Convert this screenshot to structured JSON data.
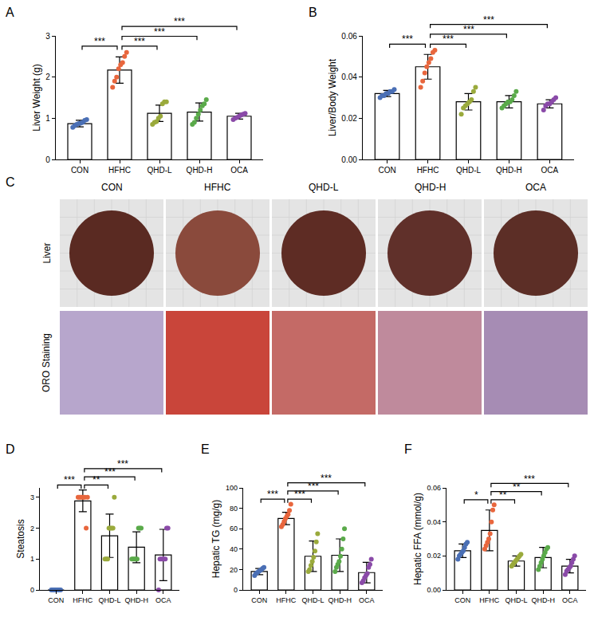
{
  "chart_data": [
    {
      "type": "bar",
      "annotations": [
        "A"
      ],
      "ylabel": "Liver Weight (g)",
      "categories": [
        "CON",
        "HFHC",
        "QHD-L",
        "QHD-H",
        "OCA"
      ],
      "values": [
        0.87,
        2.17,
        1.12,
        1.15,
        1.05
      ],
      "error": [
        0.08,
        0.32,
        0.2,
        0.22,
        0.07
      ],
      "points": [
        [
          0.78,
          0.82,
          0.85,
          0.87,
          0.88,
          0.9,
          0.95,
          0.97
        ],
        [
          1.75,
          1.9,
          2.0,
          2.2,
          2.3,
          2.35,
          2.5,
          2.6
        ],
        [
          0.85,
          0.9,
          0.92,
          1.0,
          1.05,
          1.35,
          1.4,
          1.4
        ],
        [
          0.85,
          0.9,
          1.0,
          1.1,
          1.2,
          1.3,
          1.35,
          1.45
        ],
        [
          0.97,
          1.0,
          1.02,
          1.05,
          1.08,
          1.1,
          1.12
        ]
      ],
      "colors": [
        "#4a6fb5",
        "#e8663d",
        "#9aaa3c",
        "#5aaa4a",
        "#8a4aa8"
      ],
      "ylim": [
        0,
        3
      ],
      "yticks": [
        0,
        1,
        2,
        3
      ],
      "grid": false,
      "comparisons": [
        {
          "groups": [
            "CON",
            "HFHC"
          ],
          "label": "***"
        },
        {
          "groups": [
            "HFHC",
            "QHD-L"
          ],
          "label": "***"
        },
        {
          "groups": [
            "HFHC",
            "QHD-H"
          ],
          "label": "***"
        },
        {
          "groups": [
            "HFHC",
            "OCA"
          ],
          "label": "***"
        }
      ]
    },
    {
      "type": "bar",
      "annotations": [
        "B"
      ],
      "ylabel": "Liver/Body Weight",
      "categories": [
        "CON",
        "HFHC",
        "QHD-L",
        "QHD-H",
        "OCA"
      ],
      "values": [
        0.032,
        0.045,
        0.028,
        0.028,
        0.027
      ],
      "error": [
        0.0015,
        0.006,
        0.004,
        0.003,
        0.002
      ],
      "points": [
        [
          0.03,
          0.031,
          0.031,
          0.032,
          0.032,
          0.033,
          0.033,
          0.034
        ],
        [
          0.035,
          0.038,
          0.042,
          0.045,
          0.047,
          0.049,
          0.052,
          0.053
        ],
        [
          0.022,
          0.025,
          0.026,
          0.027,
          0.028,
          0.029,
          0.033,
          0.035
        ],
        [
          0.025,
          0.026,
          0.027,
          0.028,
          0.028,
          0.029,
          0.031,
          0.033
        ],
        [
          0.024,
          0.026,
          0.027,
          0.027,
          0.028,
          0.029,
          0.03
        ]
      ],
      "colors": [
        "#4a6fb5",
        "#e8663d",
        "#9aaa3c",
        "#5aaa4a",
        "#8a4aa8"
      ],
      "ylim": [
        0,
        0.06
      ],
      "yticks": [
        {
          "value": 0,
          "label": "0.00"
        },
        {
          "value": 0.02,
          "label": "0.02"
        },
        {
          "value": 0.04,
          "label": "0.04"
        },
        {
          "value": 0.06,
          "label": "0.06"
        }
      ],
      "grid": false,
      "comparisons": [
        {
          "groups": [
            "CON",
            "HFHC"
          ],
          "label": "***"
        },
        {
          "groups": [
            "HFHC",
            "QHD-L"
          ],
          "label": "***"
        },
        {
          "groups": [
            "HFHC",
            "QHD-H"
          ],
          "label": "***"
        },
        {
          "groups": [
            "HFHC",
            "OCA"
          ],
          "label": "***"
        }
      ]
    },
    {
      "type": "bar",
      "annotations": [
        "D"
      ],
      "ylabel": "Steatosis",
      "categories": [
        "CON",
        "HFHC",
        "QHD-L",
        "QHD-H",
        "OCA"
      ],
      "values": [
        0,
        2.88,
        1.75,
        1.38,
        1.13
      ],
      "error": [
        0,
        0.35,
        0.7,
        0.5,
        0.83
      ],
      "points": [
        [
          0,
          0,
          0,
          0,
          0,
          0,
          0,
          0
        ],
        [
          3,
          3,
          3,
          3,
          3,
          3,
          2,
          3
        ],
        [
          1,
          1,
          1,
          2,
          2,
          2,
          2,
          3
        ],
        [
          1,
          1,
          1,
          1,
          1,
          2,
          2,
          2
        ],
        [
          0,
          1,
          1,
          1,
          1,
          1,
          2,
          2
        ]
      ],
      "colors": [
        "#4a6fb5",
        "#e8663d",
        "#9aaa3c",
        "#5aaa4a",
        "#8a4aa8"
      ],
      "ylim": [
        0,
        3.3
      ],
      "yticks": [
        0,
        1,
        2,
        3
      ],
      "grid": false,
      "comparisons": [
        {
          "groups": [
            "CON",
            "HFHC"
          ],
          "label": "***"
        },
        {
          "groups": [
            "HFHC",
            "QHD-L"
          ],
          "label": "**"
        },
        {
          "groups": [
            "HFHC",
            "QHD-H"
          ],
          "label": "***"
        },
        {
          "groups": [
            "HFHC",
            "OCA"
          ],
          "label": "***"
        }
      ]
    },
    {
      "type": "bar",
      "annotations": [
        "E"
      ],
      "ylabel": "Hepatic TG (mg/g)",
      "categories": [
        "CON",
        "HFHC",
        "QHD-L",
        "QHD-H",
        "OCA"
      ],
      "values": [
        18,
        70,
        33,
        34,
        17
      ],
      "error": [
        3,
        6,
        15,
        16,
        10
      ],
      "points": [
        [
          14,
          16,
          17,
          18,
          19,
          20,
          21,
          22
        ],
        [
          62,
          64,
          67,
          70,
          72,
          74,
          78,
          84
        ],
        [
          18,
          20,
          24,
          28,
          32,
          38,
          47,
          55
        ],
        [
          18,
          22,
          25,
          28,
          33,
          40,
          50,
          60
        ],
        [
          7,
          9,
          12,
          14,
          16,
          22,
          25,
          30
        ]
      ],
      "colors": [
        "#4a6fb5",
        "#e8663d",
        "#9aaa3c",
        "#5aaa4a",
        "#8a4aa8"
      ],
      "ylim": [
        0,
        100
      ],
      "yticks": [
        0,
        20,
        40,
        60,
        80,
        100
      ],
      "grid": false,
      "comparisons": [
        {
          "groups": [
            "CON",
            "HFHC"
          ],
          "label": "***"
        },
        {
          "groups": [
            "HFHC",
            "QHD-L"
          ],
          "label": "***"
        },
        {
          "groups": [
            "HFHC",
            "QHD-H"
          ],
          "label": "***"
        },
        {
          "groups": [
            "HFHC",
            "OCA"
          ],
          "label": "***"
        }
      ]
    },
    {
      "type": "bar",
      "annotations": [
        "F"
      ],
      "ylabel": "Hepatic FFA (mmol/g)",
      "categories": [
        "CON",
        "HFHC",
        "QHD-L",
        "QHD-H",
        "OCA"
      ],
      "values": [
        0.023,
        0.035,
        0.017,
        0.019,
        0.014
      ],
      "error": [
        0.004,
        0.012,
        0.003,
        0.006,
        0.004
      ],
      "points": [
        [
          0.018,
          0.02,
          0.021,
          0.022,
          0.023,
          0.025,
          0.027,
          0.028
        ],
        [
          0.024,
          0.026,
          0.028,
          0.03,
          0.033,
          0.04,
          0.047,
          0.05
        ],
        [
          0.014,
          0.015,
          0.016,
          0.017,
          0.018,
          0.019,
          0.02,
          0.021
        ],
        [
          0.012,
          0.014,
          0.016,
          0.018,
          0.02,
          0.022,
          0.024,
          0.025
        ],
        [
          0.009,
          0.011,
          0.012,
          0.013,
          0.014,
          0.016,
          0.018,
          0.02
        ]
      ],
      "colors": [
        "#4a6fb5",
        "#e8663d",
        "#9aaa3c",
        "#5aaa4a",
        "#8a4aa8"
      ],
      "ylim": [
        0,
        0.06
      ],
      "yticks": [
        {
          "value": 0,
          "label": "0.00"
        },
        {
          "value": 0.02,
          "label": "0.02"
        },
        {
          "value": 0.04,
          "label": "0.04"
        },
        {
          "value": 0.06,
          "label": "0.06"
        }
      ],
      "grid": false,
      "comparisons": [
        {
          "groups": [
            "CON",
            "HFHC"
          ],
          "label": "*"
        },
        {
          "groups": [
            "HFHC",
            "QHD-L"
          ],
          "label": "**"
        },
        {
          "groups": [
            "HFHC",
            "QHD-H"
          ],
          "label": "**"
        },
        {
          "groups": [
            "HFHC",
            "OCA"
          ],
          "label": "***"
        }
      ]
    }
  ],
  "panel_c": {
    "annotations": [
      "C"
    ],
    "columns": [
      "CON",
      "HFHC",
      "QHD-L",
      "QHD-H",
      "OCA"
    ],
    "rows": [
      "Liver",
      "ORO Staining"
    ]
  }
}
